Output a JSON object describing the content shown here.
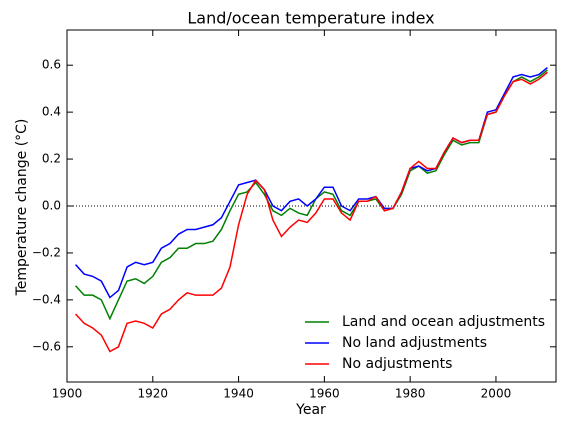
{
  "chart_data": {
    "type": "line",
    "title": "Land/ocean temperature index",
    "xlabel": "Year",
    "ylabel": "Temperature change (°C)",
    "x": [
      1902,
      1904,
      1906,
      1908,
      1910,
      1912,
      1914,
      1916,
      1918,
      1920,
      1922,
      1924,
      1926,
      1928,
      1930,
      1932,
      1934,
      1936,
      1938,
      1940,
      1942,
      1944,
      1946,
      1948,
      1950,
      1952,
      1954,
      1956,
      1958,
      1960,
      1962,
      1964,
      1966,
      1968,
      1970,
      1972,
      1974,
      1976,
      1978,
      1980,
      1982,
      1984,
      1986,
      1988,
      1990,
      1992,
      1994,
      1996,
      1998,
      2000,
      2002,
      2004,
      2006,
      2008,
      2010,
      2012
    ],
    "series": [
      {
        "name": "Land and ocean adjustments",
        "color": "#008000",
        "values": [
          -0.34,
          -0.38,
          -0.38,
          -0.4,
          -0.48,
          -0.4,
          -0.32,
          -0.31,
          -0.33,
          -0.3,
          -0.24,
          -0.22,
          -0.18,
          -0.18,
          -0.16,
          -0.16,
          -0.15,
          -0.1,
          -0.02,
          0.05,
          0.06,
          0.1,
          0.05,
          -0.02,
          -0.04,
          -0.01,
          -0.03,
          -0.04,
          0.03,
          0.06,
          0.05,
          -0.02,
          -0.04,
          0.02,
          0.02,
          0.03,
          -0.02,
          -0.01,
          0.05,
          0.15,
          0.17,
          0.14,
          0.15,
          0.22,
          0.28,
          0.26,
          0.27,
          0.27,
          0.39,
          0.4,
          0.47,
          0.53,
          0.55,
          0.53,
          0.55,
          0.58
        ]
      },
      {
        "name": "No land adjustments",
        "color": "#0000ff",
        "values": [
          -0.25,
          -0.29,
          -0.3,
          -0.32,
          -0.39,
          -0.36,
          -0.26,
          -0.24,
          -0.25,
          -0.24,
          -0.18,
          -0.16,
          -0.12,
          -0.1,
          -0.1,
          -0.09,
          -0.08,
          -0.05,
          0.02,
          0.09,
          0.1,
          0.11,
          0.07,
          0.0,
          -0.02,
          0.02,
          0.03,
          0.0,
          0.03,
          0.08,
          0.08,
          0.0,
          -0.02,
          0.03,
          0.03,
          0.04,
          -0.01,
          -0.01,
          0.06,
          0.16,
          0.17,
          0.15,
          0.16,
          0.23,
          0.29,
          0.27,
          0.28,
          0.28,
          0.4,
          0.41,
          0.48,
          0.55,
          0.56,
          0.55,
          0.56,
          0.59
        ]
      },
      {
        "name": "No adjustments",
        "color": "#ff0000",
        "values": [
          -0.46,
          -0.5,
          -0.52,
          -0.55,
          -0.62,
          -0.6,
          -0.5,
          -0.49,
          -0.5,
          -0.52,
          -0.46,
          -0.44,
          -0.4,
          -0.37,
          -0.38,
          -0.38,
          -0.38,
          -0.35,
          -0.26,
          -0.08,
          0.05,
          0.11,
          0.07,
          -0.06,
          -0.13,
          -0.09,
          -0.06,
          -0.07,
          -0.03,
          0.03,
          0.03,
          -0.03,
          -0.06,
          0.02,
          0.02,
          0.04,
          -0.02,
          -0.01,
          0.06,
          0.16,
          0.19,
          0.16,
          0.16,
          0.23,
          0.29,
          0.27,
          0.28,
          0.28,
          0.39,
          0.4,
          0.47,
          0.53,
          0.54,
          0.52,
          0.54,
          0.57
        ]
      }
    ],
    "xlim": [
      1900,
      2014
    ],
    "xticks": [
      1900,
      1920,
      1940,
      1960,
      1980,
      2000
    ],
    "ylim": [
      -0.75,
      0.75
    ],
    "yticks": [
      {
        "value": -0.6,
        "label": "−0.6"
      },
      {
        "value": -0.4,
        "label": "−0.4"
      },
      {
        "value": -0.2,
        "label": "−0.2"
      },
      {
        "value": 0,
        "label": "0.0"
      },
      0.2,
      0.4,
      0.6
    ],
    "reference_line": 0,
    "legend": "lower right"
  }
}
